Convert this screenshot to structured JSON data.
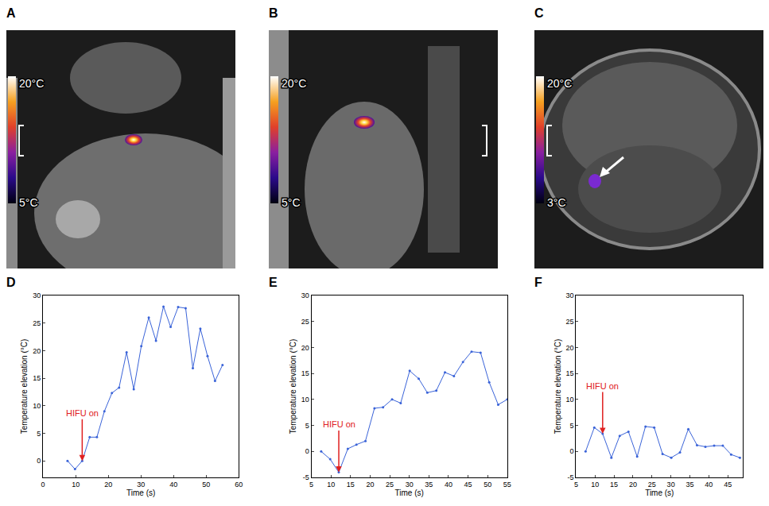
{
  "images": [
    {
      "label": "A",
      "colorbar_max_label": "20°C",
      "colorbar_min_label": "5°C"
    },
    {
      "label": "B",
      "colorbar_max_label": "20°C",
      "colorbar_min_label": "5°C"
    },
    {
      "label": "C",
      "colorbar_max_label": "20°C",
      "colorbar_min_label": "3°C"
    }
  ],
  "chart_data": [
    {
      "label": "D",
      "type": "line",
      "color": "#3a63d8",
      "marker": "circle",
      "grid": false,
      "x": [
        7.5,
        9.8,
        12.0,
        14.3,
        16.5,
        18.8,
        21.1,
        23.3,
        25.6,
        27.8,
        30.1,
        32.4,
        34.6,
        36.9,
        39.1,
        41.4,
        43.7,
        45.9,
        48.2,
        50.4,
        52.7,
        55.0
      ],
      "values": [
        0,
        -1.5,
        0,
        4.3,
        4.3,
        9,
        12.3,
        13.3,
        19.7,
        13,
        20.8,
        26,
        21.8,
        28,
        24.3,
        27.9,
        27.7,
        16.8,
        24,
        19,
        14.5,
        17.4
      ],
      "xlim": [
        0,
        60
      ],
      "xticks": [
        0,
        10,
        20,
        30,
        40,
        50,
        60
      ],
      "ylim": [
        -3,
        30
      ],
      "yticks": [
        0,
        5,
        10,
        15,
        20,
        25,
        30
      ],
      "x_label": "Time (s)",
      "y_label": "Temperature elevation (°C)",
      "annotations": [
        {
          "text": "HIFU on",
          "x": 12.0,
          "y": 0
        }
      ]
    },
    {
      "label": "E",
      "type": "line",
      "color": "#3a63d8",
      "marker": "circle",
      "grid": false,
      "x": [
        7.5,
        9.8,
        12.0,
        14.3,
        16.5,
        18.8,
        21.1,
        23.3,
        25.6,
        27.8,
        30.1,
        32.4,
        34.6,
        36.9,
        39.1,
        41.4,
        43.7,
        45.9,
        48.2,
        50.4,
        52.7,
        55.0
      ],
      "values": [
        0,
        -1.5,
        -4,
        0.5,
        1.3,
        2,
        8.3,
        8.5,
        10,
        9.3,
        15.5,
        14,
        11.3,
        11.7,
        15.2,
        14.5,
        17.2,
        19.2,
        19,
        13.3,
        9,
        10
      ],
      "xlim": [
        5,
        55
      ],
      "xticks": [
        5,
        10,
        15,
        20,
        25,
        30,
        35,
        40,
        45,
        50,
        55
      ],
      "ylim": [
        -5,
        30
      ],
      "yticks": [
        -5,
        0,
        5,
        10,
        15,
        20,
        25,
        30
      ],
      "x_label": "Time (s)",
      "y_label": "Temperature elevation (°C)",
      "annotations": [
        {
          "text": "HIFU on",
          "x": 12.0,
          "y": -4
        }
      ]
    },
    {
      "label": "F",
      "type": "line",
      "color": "#3a63d8",
      "marker": "circle",
      "grid": false,
      "x": [
        7.5,
        9.8,
        12.0,
        14.3,
        16.5,
        18.8,
        21.1,
        23.3,
        25.6,
        27.8,
        30.1,
        32.4,
        34.6,
        36.9,
        39.1,
        41.4,
        43.7,
        45.9,
        48.2
      ],
      "values": [
        0,
        4.6,
        3.4,
        -1.2,
        3,
        3.8,
        -1,
        4.8,
        4.6,
        -0.5,
        -1.2,
        -0.2,
        4.3,
        1.2,
        0.9,
        1.1,
        1.1,
        -0.6,
        -1.2
      ],
      "xlim": [
        5,
        49
      ],
      "xticks": [
        5,
        10,
        15,
        20,
        25,
        30,
        35,
        40,
        45
      ],
      "ylim": [
        -5,
        30
      ],
      "yticks": [
        -5,
        0,
        5,
        10,
        15,
        20,
        25,
        30
      ],
      "x_label": "Time (s)",
      "y_label": "Temperature elevation (°C)",
      "annotations": [
        {
          "text": "HIFU on",
          "x": 12.0,
          "y": 3.4
        }
      ]
    }
  ]
}
